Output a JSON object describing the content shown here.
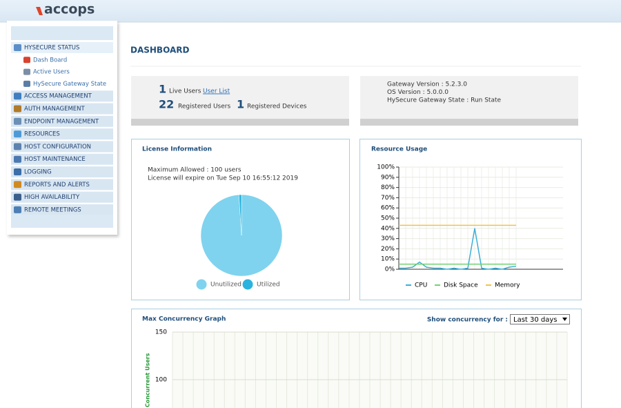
{
  "logo": "accops",
  "sidebar": {
    "menu": [
      {
        "label": "HYSECURE STATUS",
        "items": [
          "Dash Board",
          "Active Users",
          "HySecure Gateway State"
        ]
      },
      {
        "label": "ACCESS MANAGEMENT"
      },
      {
        "label": "AUTH MANAGEMENT"
      },
      {
        "label": "ENDPOINT MANAGEMENT"
      },
      {
        "label": "RESOURCES"
      },
      {
        "label": "HOST CONFIGURATION"
      },
      {
        "label": "HOST MAINTENANCE"
      },
      {
        "label": "LOGGING"
      },
      {
        "label": "REPORTS AND ALERTS"
      },
      {
        "label": "HIGH AVAILABILITY"
      },
      {
        "label": "REMOTE MEETINGS"
      }
    ]
  },
  "page_title": "DASHBOARD",
  "summary": {
    "live_users": 1,
    "live_users_label": "Live Users",
    "user_list_link": "User List",
    "registered_users": 22,
    "registered_users_label": "Registered Users",
    "registered_devices": 1,
    "registered_devices_label": "Registered Devices"
  },
  "gateway": {
    "lines": [
      "Gateway Version : 5.2.3.0",
      "OS Version : 5.0.0.0",
      "HySecure Gateway State : Run State"
    ]
  },
  "license": {
    "title": "License Information",
    "lines": [
      "Maximum Allowed : 100 users",
      "License will expire on Tue Sep 10 16:55:12 2019"
    ],
    "chart": {
      "type": "pie",
      "categories": [
        "Unutilized",
        "Utilized"
      ],
      "values": [
        99,
        1
      ],
      "colors": [
        "#7fd3ee",
        "#2ab3de"
      ]
    }
  },
  "resource_usage": {
    "title": "Resource Usage",
    "chart": {
      "type": "line",
      "ylim": [
        0,
        100
      ],
      "yticks": [
        {
          "value": 0,
          "label": "0%"
        },
        {
          "value": 10,
          "label": "10%"
        },
        {
          "value": 20,
          "label": "20%"
        },
        {
          "value": 30,
          "label": "30%"
        },
        {
          "value": 40,
          "label": "40%"
        },
        {
          "value": 50,
          "label": "50%"
        },
        {
          "value": 60,
          "label": "60%"
        },
        {
          "value": 70,
          "label": "70%"
        },
        {
          "value": 80,
          "label": "80%"
        },
        {
          "value": 90,
          "label": "90%"
        },
        {
          "value": 100,
          "label": "100%"
        }
      ],
      "grid": true,
      "series": [
        {
          "name": "CPU",
          "color": "#3aaed8",
          "values": [
            1,
            1,
            2,
            7,
            2,
            1,
            1,
            0,
            1,
            0,
            1,
            40,
            1,
            0,
            1,
            0,
            2,
            3
          ]
        },
        {
          "name": "Disk Space",
          "color": "#6fd36f",
          "values": [
            5,
            5,
            5,
            5,
            5,
            5,
            5,
            5,
            5,
            5,
            5,
            5,
            5,
            5,
            5,
            5,
            5,
            5
          ]
        },
        {
          "name": "Memory",
          "color": "#f5c242",
          "values": [
            43,
            43,
            43,
            43,
            43,
            43,
            43,
            43,
            43,
            43,
            43,
            43,
            43,
            43,
            43,
            43,
            43,
            43
          ]
        }
      ]
    }
  },
  "concurrency": {
    "title": "Max Concurrency Graph",
    "filter_label": "Show concurrency for :",
    "filter_value": "Last 30 days",
    "chart": {
      "y_label": "Concurrent Users",
      "ylim": [
        0,
        150
      ],
      "yticks": [
        100,
        150
      ],
      "grid": true
    }
  }
}
